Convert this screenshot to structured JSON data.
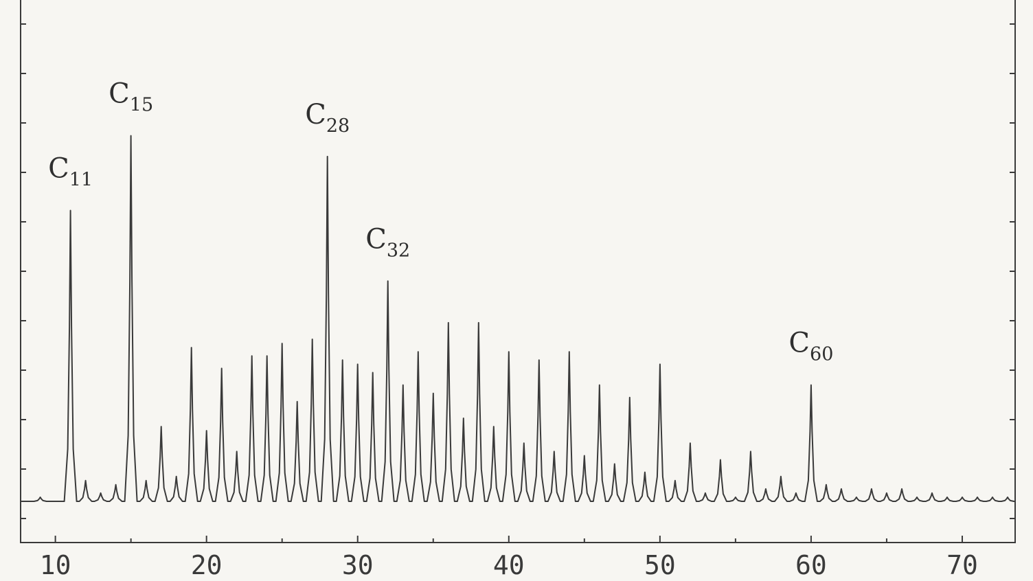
{
  "chart_data": {
    "type": "line",
    "title": "",
    "xlabel": "",
    "ylabel": "",
    "xlim": [
      7.7,
      73.5
    ],
    "ylim": [
      0,
      100
    ],
    "x_ticks": [
      10,
      20,
      30,
      40,
      50,
      60,
      70
    ],
    "x_tick_labels": [
      "10",
      "20",
      "30",
      "40",
      "50",
      "60",
      "70"
    ],
    "grid": false,
    "series": [
      {
        "x": [
          9,
          10,
          11,
          12,
          13,
          14,
          15,
          16,
          17,
          18,
          19,
          20,
          21,
          22,
          23,
          24,
          25,
          26,
          27,
          28,
          29,
          30,
          31,
          32,
          33,
          34,
          35,
          36,
          37,
          38,
          39,
          40,
          41,
          42,
          43,
          44,
          45,
          46,
          47,
          48,
          49,
          50,
          51,
          52,
          53,
          54,
          55,
          56,
          57,
          58,
          59,
          60,
          61,
          62,
          63,
          64,
          65,
          66,
          67,
          68,
          69,
          70,
          71,
          72,
          73
        ],
        "y": [
          1,
          0,
          70,
          5,
          2,
          4,
          88,
          5,
          18,
          6,
          37,
          17,
          32,
          12,
          35,
          35,
          38,
          24,
          39,
          83,
          34,
          33,
          31,
          53,
          28,
          36,
          26,
          43,
          20,
          43,
          18,
          36,
          14,
          34,
          12,
          36,
          11,
          28,
          9,
          25,
          7,
          33,
          5,
          14,
          2,
          10,
          1,
          12,
          3,
          6,
          2,
          28,
          4,
          3,
          1,
          3,
          2,
          3,
          1,
          2,
          1,
          1,
          1,
          1,
          1
        ]
      }
    ],
    "peak_labels": [
      {
        "base": "C",
        "sub": "11",
        "x": 11
      },
      {
        "base": "C",
        "sub": "15",
        "x": 15
      },
      {
        "base": "C",
        "sub": "28",
        "x": 28
      },
      {
        "base": "C",
        "sub": "32",
        "x": 32
      },
      {
        "base": "C",
        "sub": "60",
        "x": 60
      }
    ],
    "colors": {
      "trace": "#3a3a3a",
      "axis": "#3a3a3a",
      "background": "#f7f6f2"
    }
  }
}
